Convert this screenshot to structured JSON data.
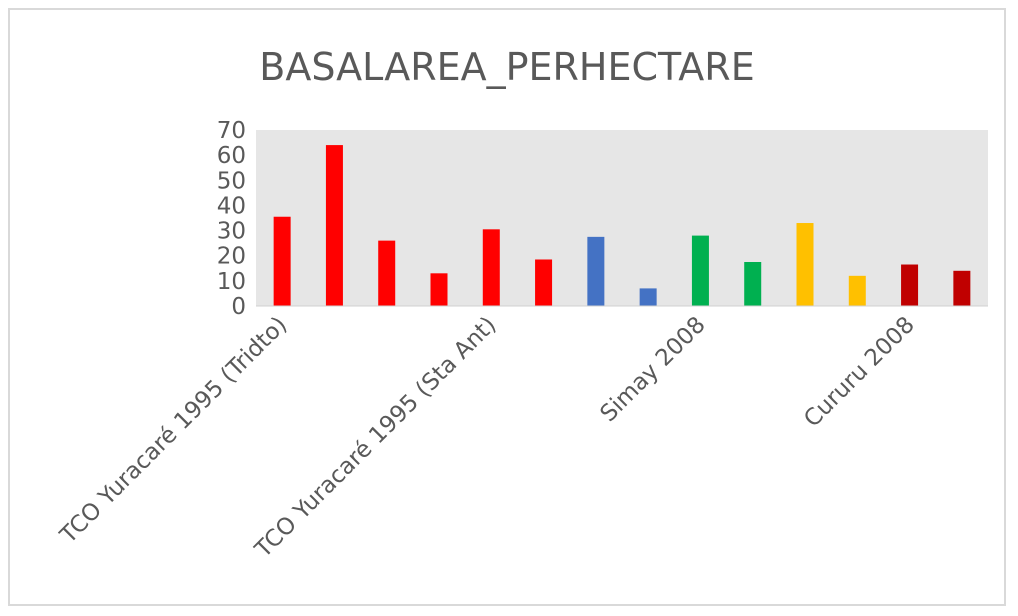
{
  "chart_data": {
    "type": "bar",
    "title": "BASALAREA_PERHECTARE",
    "xlabel": "",
    "ylabel": "",
    "ylim": [
      0,
      70
    ],
    "yticks": [
      0,
      10,
      20,
      30,
      40,
      50,
      60,
      70
    ],
    "category_labels": [
      "TCO Yuracaré 1995 (Tridto)",
      "TCO Yuracaré 1995 (Sta Ant)",
      "Simay 2008",
      "Cururu 2008"
    ],
    "values": [
      35.5,
      64,
      26,
      13,
      30.5,
      18.5,
      27.5,
      7,
      28,
      17.5,
      33,
      12,
      16.5,
      14
    ],
    "bar_colors": [
      "#ff0000",
      "#ff0000",
      "#ff0000",
      "#ff0000",
      "#ff0000",
      "#ff0000",
      "#4472c4",
      "#4472c4",
      "#00b050",
      "#00b050",
      "#ffc000",
      "#ffc000",
      "#c00000",
      "#c00000"
    ],
    "plot_background": "#e6e6e6",
    "grid": false,
    "legend": "none"
  }
}
